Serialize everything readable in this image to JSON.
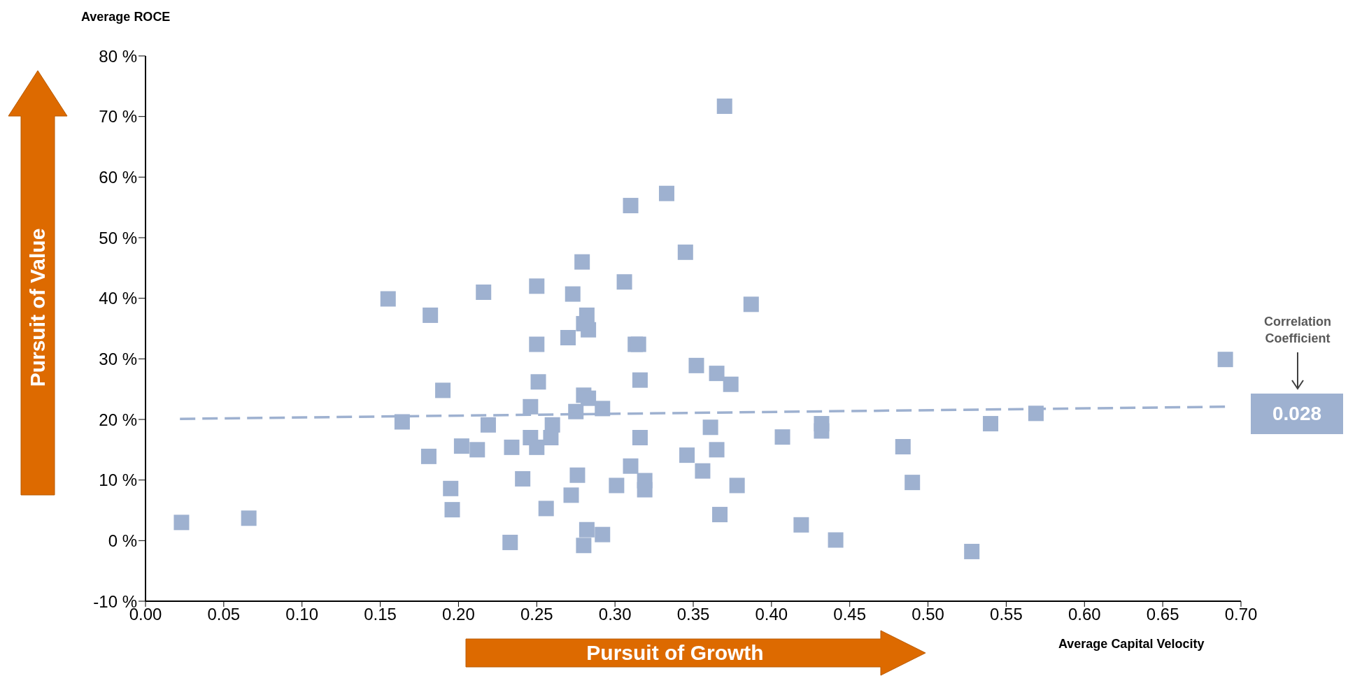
{
  "chart_data": {
    "type": "scatter",
    "ylabel": "Average ROCE",
    "xlabel": "Average Capital Velocity",
    "marker": "square",
    "xlim": [
      0,
      0.7
    ],
    "xticks": [
      {
        "value": 0,
        "label": "0.00"
      },
      {
        "value": 0.05,
        "label": "0.05"
      },
      {
        "value": 0.1,
        "label": "0.10"
      },
      {
        "value": 0.15,
        "label": "0.15"
      },
      {
        "value": 0.2,
        "label": "0.20"
      },
      {
        "value": 0.25,
        "label": "0.25"
      },
      {
        "value": 0.3,
        "label": "0.30"
      },
      {
        "value": 0.35,
        "label": "0.35"
      },
      {
        "value": 0.4,
        "label": "0.40"
      },
      {
        "value": 0.45,
        "label": "0.45"
      },
      {
        "value": 0.5,
        "label": "0.50"
      },
      {
        "value": 0.55,
        "label": "0.55"
      },
      {
        "value": 0.6,
        "label": "0.60"
      },
      {
        "value": 0.65,
        "label": "0.65"
      },
      {
        "value": 0.7,
        "label": "0.70"
      }
    ],
    "ylim": [
      -10,
      80
    ],
    "yticks": [
      {
        "value": -10,
        "label": "-10 %"
      },
      {
        "value": 0,
        "label": "0 %"
      },
      {
        "value": 10,
        "label": "10 %"
      },
      {
        "value": 20,
        "label": "20 %"
      },
      {
        "value": 30,
        "label": "30 %"
      },
      {
        "value": 40,
        "label": "40 %"
      },
      {
        "value": 50,
        "label": "50 %"
      },
      {
        "value": 60,
        "label": "60 %"
      },
      {
        "value": 70,
        "label": "70 %"
      },
      {
        "value": 80,
        "label": "80 %"
      }
    ],
    "series": [
      {
        "type": "scatter",
        "color": "#9eb1d0",
        "x": [
          0.023,
          0.066,
          0.155,
          0.182,
          0.216,
          0.19,
          0.164,
          0.181,
          0.202,
          0.212,
          0.219,
          0.195,
          0.196,
          0.233,
          0.234,
          0.241,
          0.246,
          0.246,
          0.25,
          0.25,
          0.251,
          0.25,
          0.256,
          0.259,
          0.26,
          0.27,
          0.273,
          0.272,
          0.275,
          0.276,
          0.279,
          0.28,
          0.28,
          0.282,
          0.283,
          0.283,
          0.282,
          0.28,
          0.292,
          0.292,
          0.301,
          0.306,
          0.31,
          0.31,
          0.313,
          0.315,
          0.316,
          0.316,
          0.319,
          0.319,
          0.333,
          0.345,
          0.346,
          0.352,
          0.356,
          0.361,
          0.365,
          0.365,
          0.367,
          0.37,
          0.374,
          0.378,
          0.387,
          0.407,
          0.419,
          0.432,
          0.432,
          0.441,
          0.484,
          0.49,
          0.528,
          0.54,
          0.569,
          0.69
        ],
        "values": [
          3.0,
          3.7,
          39.9,
          37.2,
          41.0,
          24.8,
          19.6,
          13.9,
          15.6,
          15.0,
          19.1,
          8.6,
          5.1,
          -0.3,
          15.4,
          10.2,
          22.1,
          17.0,
          42.0,
          32.4,
          26.2,
          15.4,
          5.3,
          17.0,
          19.1,
          33.5,
          40.7,
          7.5,
          21.3,
          10.8,
          46.0,
          35.8,
          24.0,
          37.2,
          34.8,
          23.5,
          1.8,
          -0.8,
          1.0,
          21.8,
          9.1,
          42.7,
          55.3,
          12.3,
          32.4,
          32.4,
          26.5,
          17.0,
          9.9,
          8.4,
          57.3,
          47.6,
          14.1,
          28.9,
          11.5,
          18.7,
          15.0,
          27.6,
          4.3,
          71.7,
          25.8,
          9.1,
          39.0,
          17.1,
          2.6,
          19.3,
          18.1,
          0.1,
          15.5,
          9.6,
          -1.8,
          19.3,
          21.0,
          29.9
        ]
      },
      {
        "type": "line",
        "color": "#9eb1d0",
        "line_style": "dashed",
        "marker": "none",
        "x": [
          0.022,
          0.69
        ],
        "values": [
          20.1,
          22.1
        ]
      }
    ],
    "annotations": [
      "Pursuit of Value",
      "Pursuit of Growth",
      "Correlation Coefficient",
      "0.028"
    ]
  }
}
